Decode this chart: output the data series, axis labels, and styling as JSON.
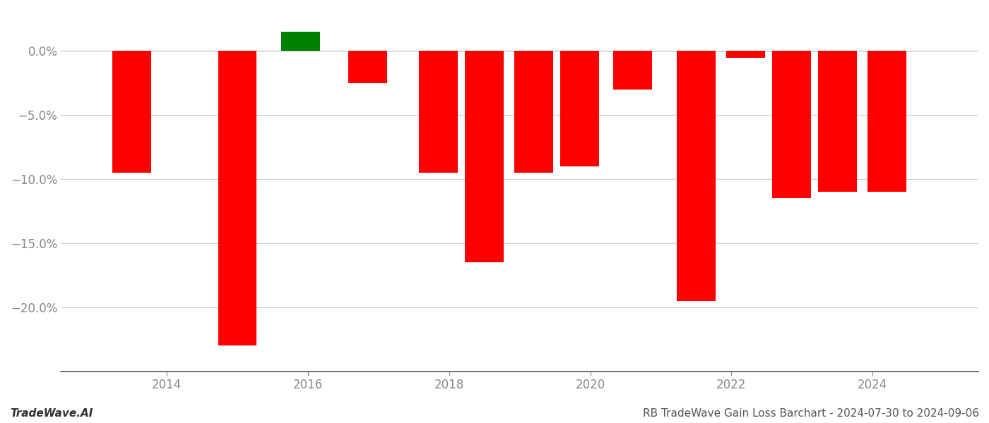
{
  "bar_positions": [
    2013.5,
    2015.0,
    2015.9,
    2016.85,
    2017.85,
    2018.5,
    2019.2,
    2019.85,
    2020.6,
    2021.5,
    2022.2,
    2022.85,
    2023.5,
    2024.2
  ],
  "bar_values": [
    -9.5,
    -23.0,
    1.5,
    -2.5,
    -9.5,
    -16.5,
    -9.5,
    -9.0,
    -3.0,
    -19.5,
    -0.5,
    -11.5,
    -11.0,
    -11.0
  ],
  "bar_colors": [
    "red",
    "red",
    "green",
    "red",
    "red",
    "red",
    "red",
    "red",
    "red",
    "red",
    "red",
    "red",
    "red",
    "red"
  ],
  "bar_width": 0.55,
  "ylim": [
    -25,
    2.5
  ],
  "yticks": [
    0.0,
    -5.0,
    -10.0,
    -15.0,
    -20.0
  ],
  "xlim": [
    2012.5,
    2025.5
  ],
  "xticks": [
    2014,
    2016,
    2018,
    2020,
    2022,
    2024
  ],
  "footer_left": "TradeWave.AI",
  "footer_right": "RB TradeWave Gain Loss Barchart - 2024-07-30 to 2024-09-06",
  "bg_color": "#ffffff",
  "grid_color": "#cccccc",
  "tick_color": "#888888",
  "footer_fontsize": 11
}
